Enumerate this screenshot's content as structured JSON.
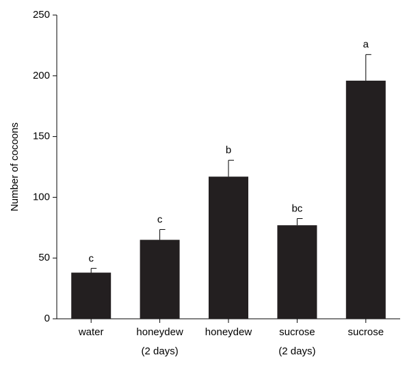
{
  "chart_data": {
    "type": "bar",
    "y_label": "Number of cocoons",
    "categories": [
      "water",
      "honeydew\n(2 days)",
      "honeydew",
      "sucrose\n(2 days)",
      "sucrose"
    ],
    "values": [
      38,
      65,
      117,
      77,
      196
    ],
    "errors": [
      3.5,
      8.5,
      13.5,
      5.5,
      21.5
    ],
    "letters": [
      "c",
      "c",
      "b",
      "bc",
      "a"
    ],
    "color": "#231f20",
    "ylim": [
      0,
      250
    ],
    "yticks": [
      0,
      50,
      100,
      150,
      200,
      250
    ]
  }
}
